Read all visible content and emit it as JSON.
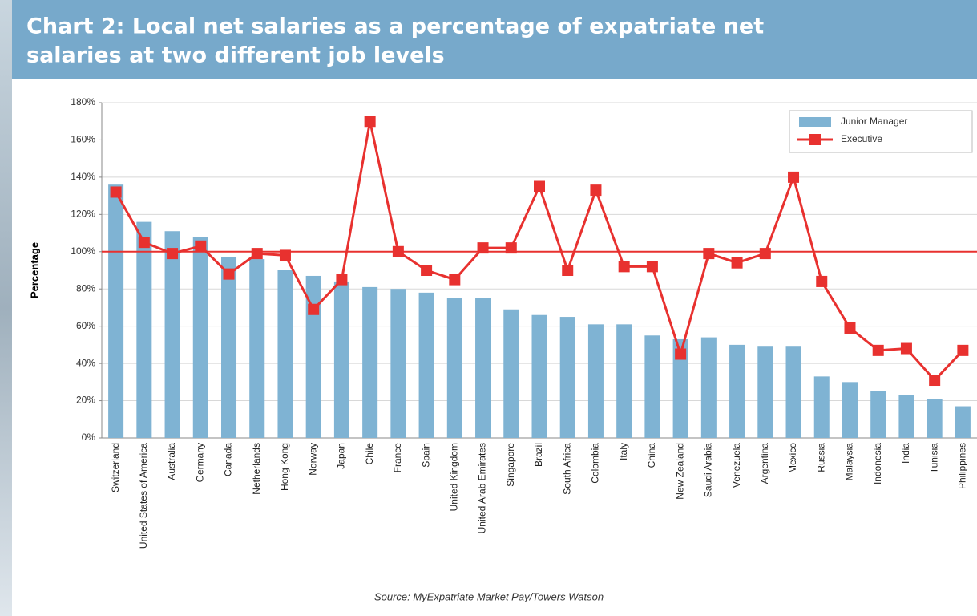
{
  "chart_data": {
    "type": "bar_line",
    "title": [
      "Chart 2: Local net salaries as a percentage of expatriate net",
      "salaries at two different job levels"
    ],
    "y_label": "Percentage",
    "source": "Source: MyExpatriate Market Pay/Towers Watson",
    "categories": [
      "Switzerland",
      "United States of America",
      "Australia",
      "Germany",
      "Canada",
      "Netherlands",
      "Hong Kong",
      "Norway",
      "Japan",
      "Chile",
      "France",
      "Spain",
      "United Kingdom",
      "United Arab Emirates",
      "Singapore",
      "Brazil",
      "South Africa",
      "Colombia",
      "Italy",
      "China",
      "New Zealand",
      "Saudi Arabia",
      "Venezuela",
      "Argentina",
      "Mexico",
      "Russia",
      "Malaysia",
      "Indonesia",
      "India",
      "Tunisia",
      "Philippines"
    ],
    "series": [
      {
        "name": "Junior Manager",
        "type": "bar",
        "color": "#7fb3d3",
        "values": [
          136,
          116,
          111,
          108,
          97,
          96,
          90,
          87,
          84,
          81,
          80,
          78,
          75,
          75,
          69,
          66,
          65,
          61,
          61,
          55,
          53,
          54,
          50,
          49,
          49,
          33,
          30,
          25,
          23,
          21,
          17
        ]
      },
      {
        "name": "Executive",
        "type": "line",
        "color": "#e8312f",
        "values": [
          132,
          105,
          99,
          103,
          88,
          99,
          98,
          69,
          85,
          170,
          100,
          90,
          85,
          102,
          102,
          135,
          90,
          133,
          92,
          92,
          45,
          99,
          94,
          99,
          140,
          84,
          59,
          47,
          48,
          31,
          47
        ]
      }
    ],
    "reference_line": {
      "value": 100,
      "color": "#e8312f"
    },
    "ylim": [
      0,
      180
    ],
    "yticks": [
      {
        "value": 0,
        "label": "0%"
      },
      {
        "value": 20,
        "label": "20%"
      },
      {
        "value": 40,
        "label": "40%"
      },
      {
        "value": 60,
        "label": "60%"
      },
      {
        "value": 80,
        "label": "80%"
      },
      {
        "value": 100,
        "label": "100%"
      },
      {
        "value": 120,
        "label": "120%"
      },
      {
        "value": 140,
        "label": "140%"
      },
      {
        "value": 160,
        "label": "160%"
      },
      {
        "value": 180,
        "label": "180%"
      }
    ],
    "grid": true,
    "legend": "top-right"
  }
}
